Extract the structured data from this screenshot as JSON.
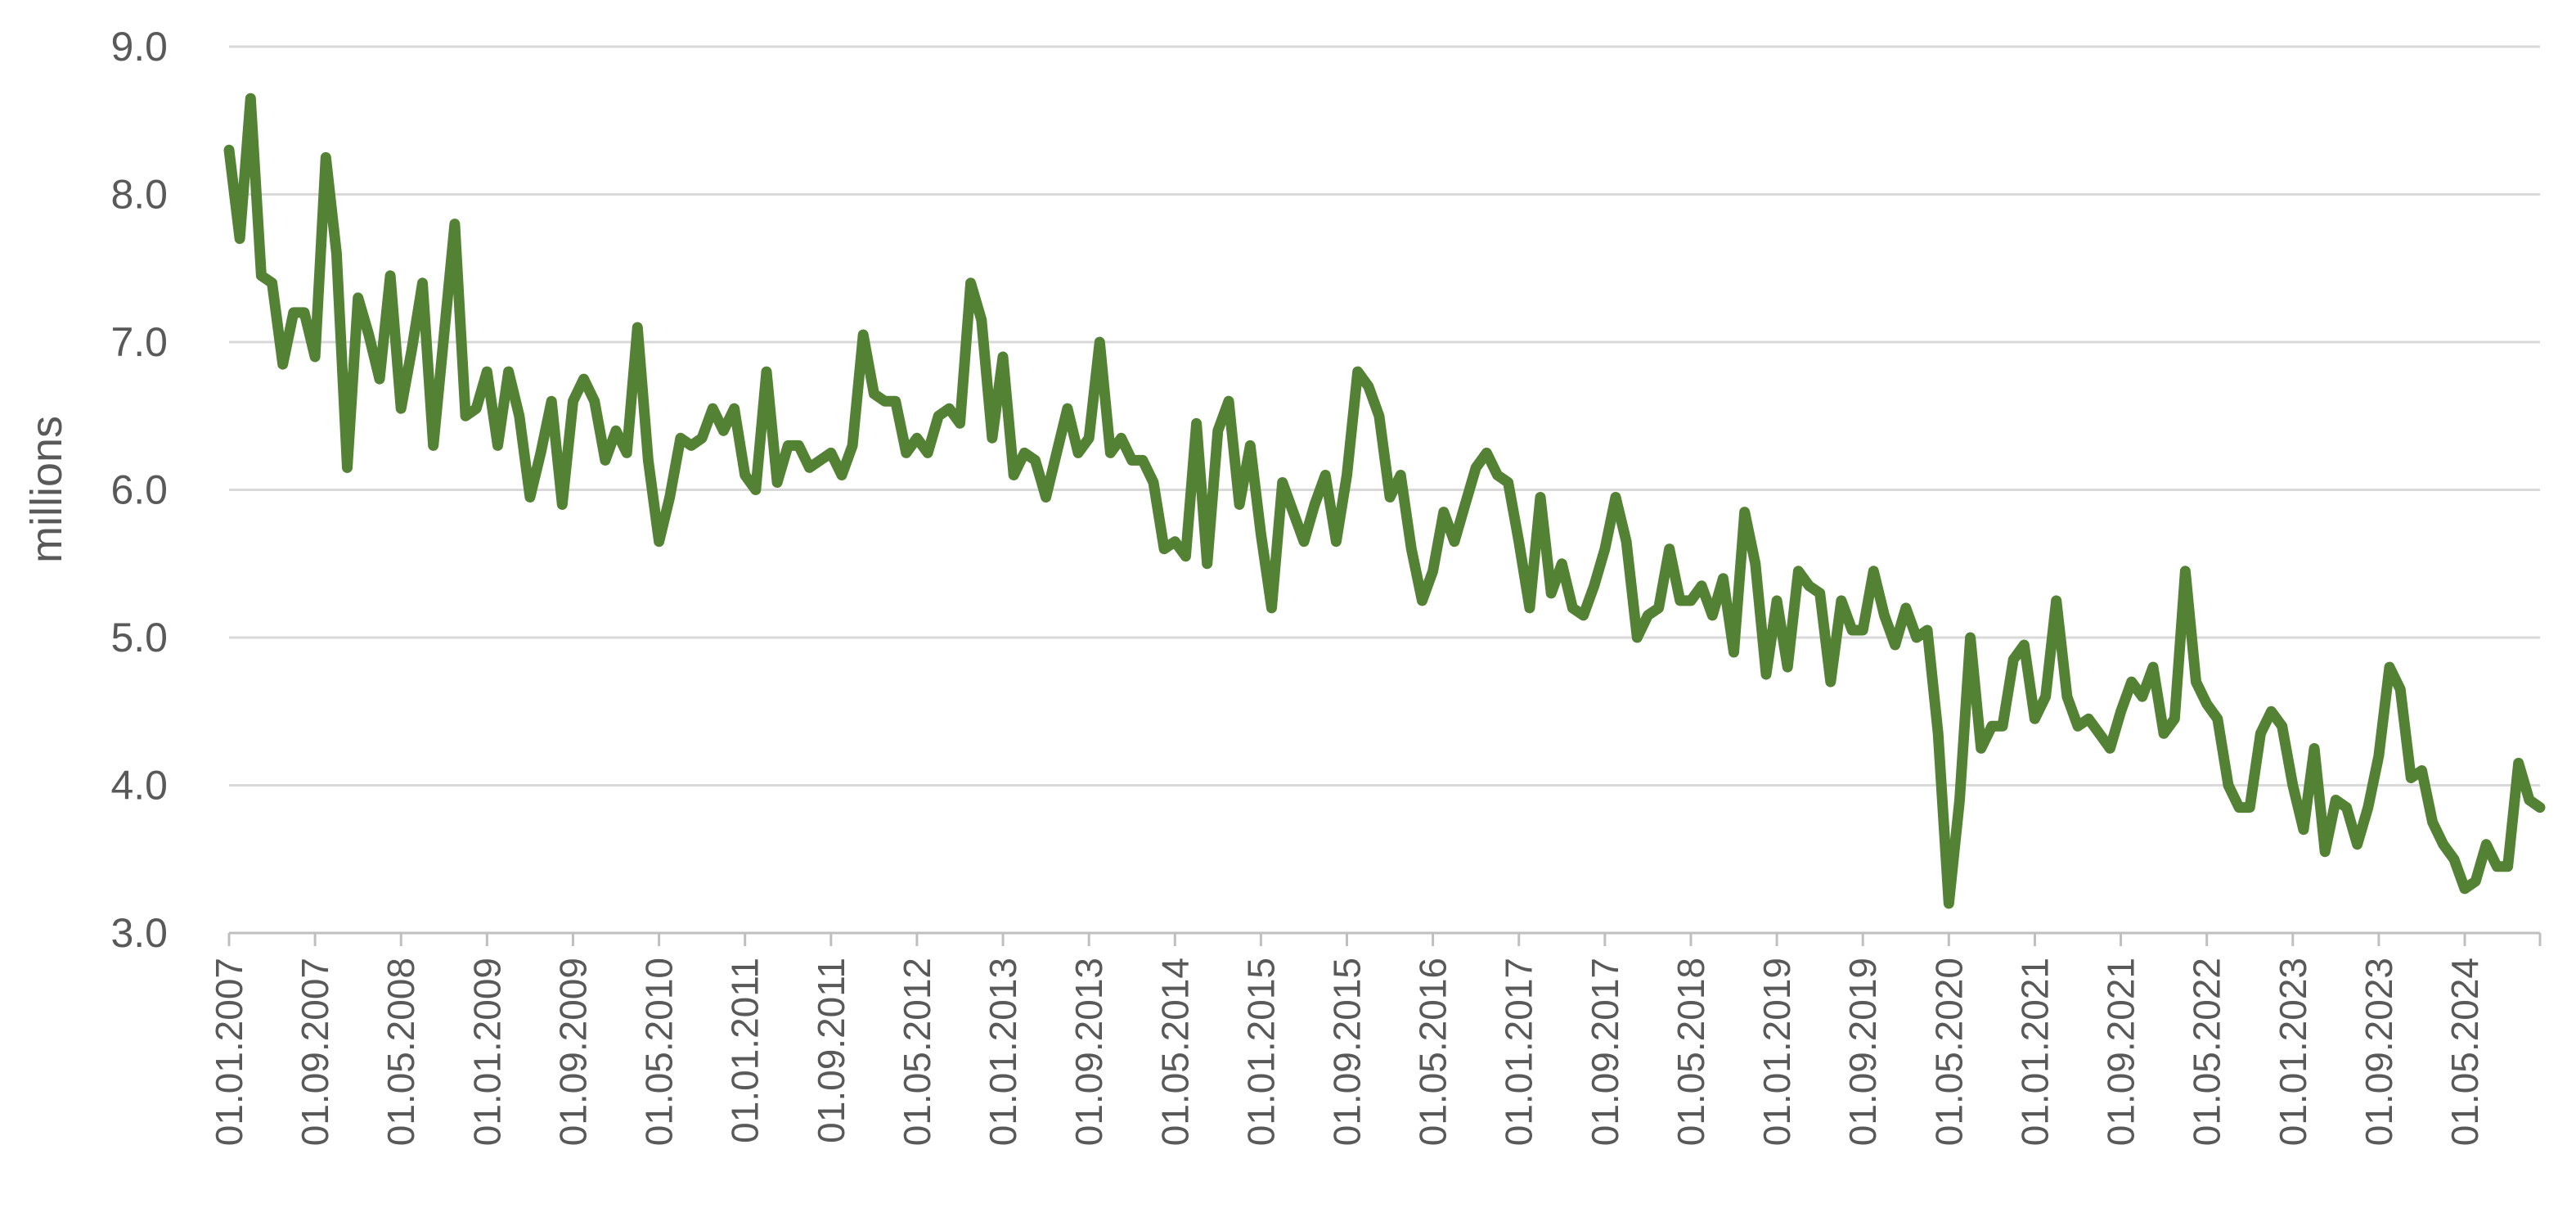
{
  "chart_data": {
    "type": "line",
    "title": "",
    "xlabel": "",
    "ylabel": "millions",
    "ylim": [
      3.0,
      9.0
    ],
    "yticks": [
      "3.0",
      "4.0",
      "5.0",
      "6.0",
      "7.0",
      "8.0",
      "9.0"
    ],
    "xtick_labels": [
      "01.01.2007",
      "01.09.2007",
      "01.05.2008",
      "01.01.2009",
      "01.09.2009",
      "01.05.2010",
      "01.01.2011",
      "01.09.2011",
      "01.05.2012",
      "01.01.2013",
      "01.09.2013",
      "01.05.2014",
      "01.01.2015",
      "01.09.2015",
      "01.05.2016",
      "01.01.2017",
      "01.09.2017",
      "01.05.2018",
      "01.01.2019",
      "01.09.2019",
      "01.05.2020",
      "01.01.2021",
      "01.09.2021",
      "01.05.2022",
      "01.01.2023",
      "01.09.2023",
      "01.05.2024"
    ],
    "grid": true,
    "legend": "none",
    "color": "#548235",
    "series": [
      {
        "x_start": "01.01.2007",
        "frequency": "monthly",
        "values": [
          8.3,
          7.7,
          8.65,
          7.45,
          7.4,
          6.85,
          7.2,
          7.2,
          6.9,
          8.25,
          7.6,
          6.15,
          7.3,
          7.05,
          6.75,
          7.45,
          6.55,
          6.95,
          7.4,
          6.3,
          7.05,
          7.8,
          6.5,
          6.55,
          6.8,
          6.3,
          6.8,
          6.5,
          5.95,
          6.25,
          6.6,
          5.9,
          6.6,
          6.75,
          6.6,
          6.2,
          6.4,
          6.25,
          7.1,
          6.2,
          5.65,
          5.95,
          6.35,
          6.3,
          6.35,
          6.55,
          6.4,
          6.55,
          6.1,
          6.0,
          6.8,
          6.05,
          6.3,
          6.3,
          6.15,
          6.2,
          6.25,
          6.1,
          6.3,
          7.05,
          6.65,
          6.6,
          6.6,
          6.25,
          6.35,
          6.25,
          6.5,
          6.55,
          6.45,
          7.4,
          7.15,
          6.35,
          6.9,
          6.1,
          6.25,
          6.2,
          5.95,
          6.25,
          6.55,
          6.25,
          6.35,
          7.0,
          6.25,
          6.35,
          6.2,
          6.2,
          6.05,
          5.6,
          5.65,
          5.55,
          6.45,
          5.5,
          6.4,
          6.6,
          5.9,
          6.3,
          5.7,
          5.2,
          6.05,
          5.85,
          5.65,
          5.9,
          6.1,
          5.65,
          6.1,
          6.8,
          6.7,
          6.5,
          5.95,
          6.1,
          5.6,
          5.25,
          5.45,
          5.85,
          5.65,
          5.9,
          6.15,
          6.25,
          6.1,
          6.05,
          5.65,
          5.2,
          5.95,
          5.3,
          5.5,
          5.2,
          5.15,
          5.35,
          5.6,
          5.95,
          5.65,
          5.0,
          5.15,
          5.2,
          5.6,
          5.25,
          5.25,
          5.35,
          5.15,
          5.4,
          4.9,
          5.85,
          5.5,
          4.75,
          5.25,
          4.8,
          5.45,
          5.35,
          5.3,
          4.7,
          5.25,
          5.05,
          5.05,
          5.45,
          5.15,
          4.95,
          5.2,
          5.0,
          5.05,
          4.35,
          3.2,
          3.9,
          5.0,
          4.25,
          4.4,
          4.4,
          4.85,
          4.95,
          4.45,
          4.6,
          5.25,
          4.6,
          4.4,
          4.45,
          4.35,
          4.25,
          4.5,
          4.7,
          4.6,
          4.8,
          4.35,
          4.45,
          5.45,
          4.7,
          4.55,
          4.45,
          4.0,
          3.85,
          3.85,
          4.35,
          4.5,
          4.4,
          4.0,
          3.7,
          4.25,
          3.55,
          3.9,
          3.85,
          3.6,
          3.85,
          4.2,
          4.8,
          4.65,
          4.05,
          4.1,
          3.75,
          3.6,
          3.5,
          3.3,
          3.35,
          3.6,
          3.45,
          3.45,
          4.15,
          3.9,
          3.85
        ]
      }
    ]
  }
}
